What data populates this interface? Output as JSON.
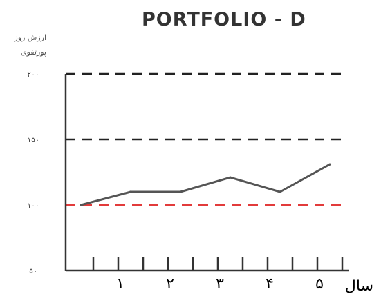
{
  "chart_data": {
    "type": "line",
    "title": "PORTFOLIO - D",
    "ylabel": [
      "ارزش روز",
      "پورتفوی"
    ],
    "xlabel": "سال",
    "x": [
      0,
      1,
      2,
      3,
      4,
      5
    ],
    "series": [
      {
        "values": [
          100,
          110,
          110,
          121,
          110,
          131
        ],
        "color": "#555555"
      }
    ],
    "xticks": [
      {
        "x": 1,
        "label": "۱"
      },
      {
        "x": 2,
        "label": "۲"
      },
      {
        "x": 3,
        "label": "۳"
      },
      {
        "x": 4,
        "label": "۴"
      },
      {
        "x": 5,
        "label": "۵"
      }
    ],
    "yticks": [
      {
        "value": 50,
        "label": "۵۰"
      },
      {
        "value": 100,
        "label": "۱۰۰"
      },
      {
        "value": 150,
        "label": "۱۵۰"
      },
      {
        "value": 200,
        "label": "۲۰۰"
      }
    ],
    "minor_ticks_per_year": 2,
    "reference_lines": [
      {
        "value": 200,
        "color": "#222222"
      },
      {
        "value": 150,
        "color": "#222222"
      },
      {
        "value": 100,
        "color": "#e23b3b"
      }
    ],
    "ylim": [
      50,
      200
    ],
    "xlim": [
      0,
      5.4
    ],
    "grid": false
  }
}
